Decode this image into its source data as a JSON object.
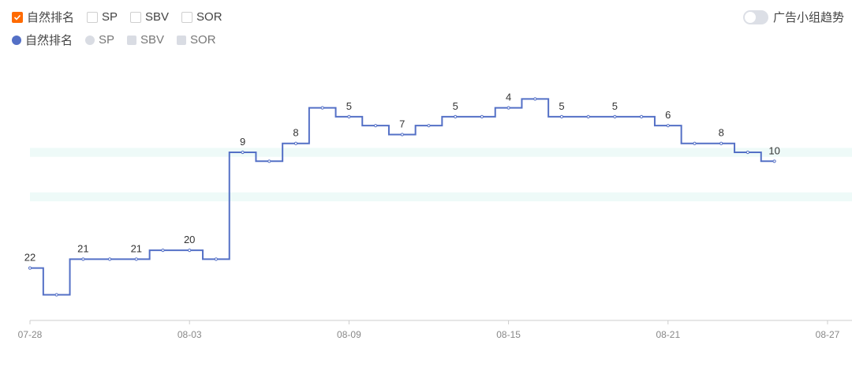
{
  "checkboxes": [
    {
      "label": "自然排名",
      "checked": true
    },
    {
      "label": "SP",
      "checked": false
    },
    {
      "label": "SBV",
      "checked": false
    },
    {
      "label": "SOR",
      "checked": false
    }
  ],
  "legend": [
    {
      "label": "自然排名",
      "active": true,
      "shape": "circle"
    },
    {
      "label": "SP",
      "active": false,
      "shape": "circle"
    },
    {
      "label": "SBV",
      "active": false,
      "shape": "square"
    },
    {
      "label": "SOR",
      "active": false,
      "shape": "square"
    }
  ],
  "toggle": {
    "label": "广告小组趋势",
    "on": false
  },
  "colors": {
    "line": "#5470c6",
    "band": "#eefaf8",
    "accent": "#ff6a00"
  },
  "chart_data": {
    "type": "line",
    "step": true,
    "y_inverted": true,
    "x_ticks": [
      "07-28",
      "08-03",
      "08-09",
      "08-15",
      "08-21",
      "08-27"
    ],
    "x_range": [
      "07-28",
      "08-27"
    ],
    "ylim": [
      1,
      25
    ],
    "bands": [
      [
        13.5,
        14.5
      ],
      [
        8.5,
        9.5
      ]
    ],
    "series": [
      {
        "name": "自然排名",
        "points": [
          {
            "x": "07-28",
            "y": 22
          },
          {
            "x": "07-29",
            "y": 25
          },
          {
            "x": "07-30",
            "y": 21
          },
          {
            "x": "07-31",
            "y": 21
          },
          {
            "x": "08-01",
            "y": 21
          },
          {
            "x": "08-02",
            "y": 20
          },
          {
            "x": "08-03",
            "y": 20
          },
          {
            "x": "08-04",
            "y": 21
          },
          {
            "x": "08-05",
            "y": 9
          },
          {
            "x": "08-06",
            "y": 10
          },
          {
            "x": "08-07",
            "y": 8
          },
          {
            "x": "08-08",
            "y": 4
          },
          {
            "x": "08-09",
            "y": 5
          },
          {
            "x": "08-10",
            "y": 6
          },
          {
            "x": "08-11",
            "y": 7
          },
          {
            "x": "08-12",
            "y": 6
          },
          {
            "x": "08-13",
            "y": 5
          },
          {
            "x": "08-14",
            "y": 5
          },
          {
            "x": "08-15",
            "y": 4
          },
          {
            "x": "08-16",
            "y": 3
          },
          {
            "x": "08-17",
            "y": 5
          },
          {
            "x": "08-18",
            "y": 5
          },
          {
            "x": "08-19",
            "y": 5
          },
          {
            "x": "08-20",
            "y": 5
          },
          {
            "x": "08-21",
            "y": 6
          },
          {
            "x": "08-22",
            "y": 8
          },
          {
            "x": "08-23",
            "y": 8
          },
          {
            "x": "08-24",
            "y": 9
          },
          {
            "x": "08-25",
            "y": 10
          }
        ],
        "labels": [
          {
            "x": "07-28",
            "text": "22"
          },
          {
            "x": "07-30",
            "text": "21"
          },
          {
            "x": "08-01",
            "text": "21"
          },
          {
            "x": "08-03",
            "text": "20"
          },
          {
            "x": "08-05",
            "text": "9"
          },
          {
            "x": "08-07",
            "text": "8"
          },
          {
            "x": "08-09",
            "text": "5"
          },
          {
            "x": "08-11",
            "text": "7"
          },
          {
            "x": "08-13",
            "text": "5"
          },
          {
            "x": "08-15",
            "text": "4"
          },
          {
            "x": "08-17",
            "text": "5"
          },
          {
            "x": "08-19",
            "text": "5"
          },
          {
            "x": "08-21",
            "text": "6"
          },
          {
            "x": "08-23",
            "text": "8"
          },
          {
            "x": "08-25",
            "text": "10"
          }
        ]
      }
    ]
  }
}
